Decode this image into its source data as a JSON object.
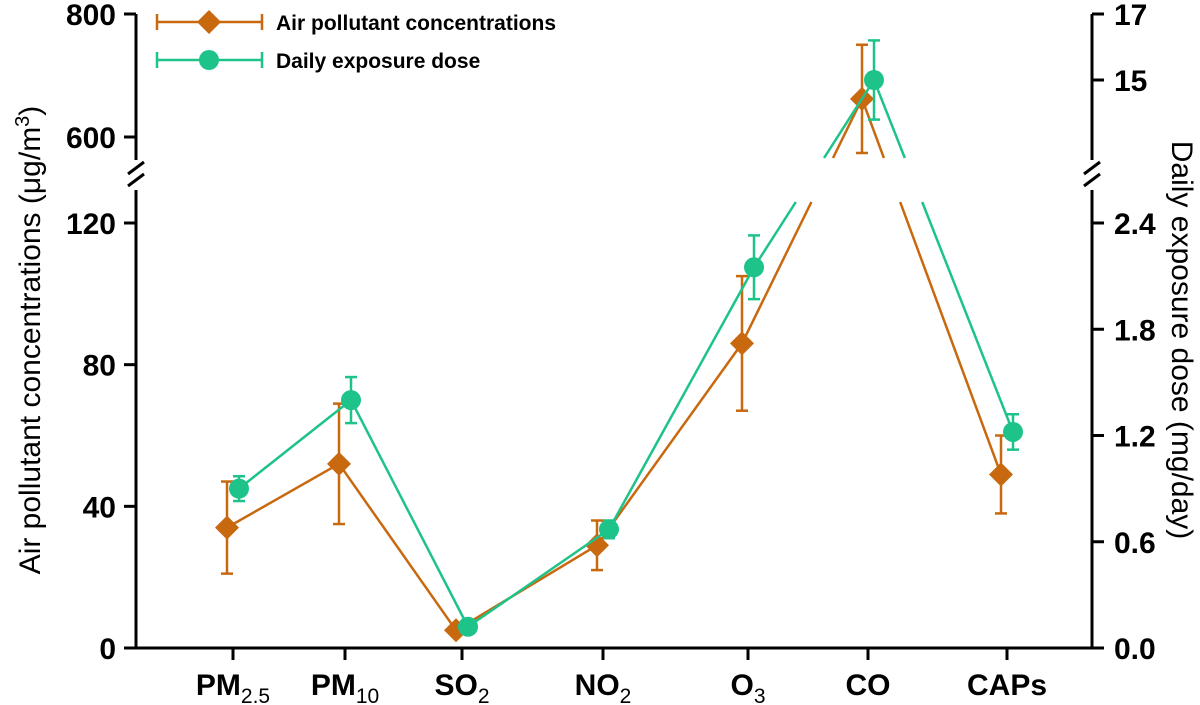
{
  "chart_data": {
    "type": "line",
    "categories": [
      {
        "main": "PM",
        "sub": "2.5"
      },
      {
        "main": "PM",
        "sub": "10"
      },
      {
        "main": "SO",
        "sub": "2"
      },
      {
        "main": "NO",
        "sub": "2"
      },
      {
        "main": "O",
        "sub": "3"
      },
      {
        "main": "CO",
        "sub": ""
      },
      {
        "main": "CAPs",
        "sub": ""
      }
    ],
    "left_axis": {
      "label": "Air pollutant concentrations (μg/m³)",
      "label_main": "Air pollutant concentrations (μg/m",
      "label_sup": "3",
      "label_end": ")",
      "lower_range": [
        0,
        120
      ],
      "upper_range": [
        570,
        800
      ],
      "lower_ticks": [
        "0",
        "40",
        "80",
        "120"
      ],
      "upper_ticks": [
        "600",
        "800"
      ]
    },
    "right_axis": {
      "label": "Daily exposure dose (mg/day)",
      "lower_range": [
        0,
        2.4
      ],
      "upper_range": [
        14,
        17
      ],
      "lower_ticks": [
        "0.0",
        "0.6",
        "1.2",
        "1.8",
        "2.4"
      ],
      "upper_ticks": [
        "15",
        "17"
      ]
    },
    "series": [
      {
        "name": "Air pollutant concentrations",
        "axis": "left",
        "marker": "diamond",
        "color": "#c8680f",
        "values": [
          34,
          52,
          5,
          29,
          86,
          662,
          49
        ],
        "error": [
          13,
          17,
          0,
          7,
          19,
          88,
          11
        ]
      },
      {
        "name": "Daily exposure dose",
        "axis": "right",
        "marker": "circle",
        "color": "#1ec38a",
        "values": [
          0.9,
          1.4,
          0.12,
          0.67,
          2.15,
          15.0,
          1.22
        ],
        "error": [
          0.07,
          0.13,
          0.0,
          0.05,
          0.18,
          1.2,
          0.1
        ]
      }
    ],
    "legend_position": "top-left",
    "grid": false
  }
}
